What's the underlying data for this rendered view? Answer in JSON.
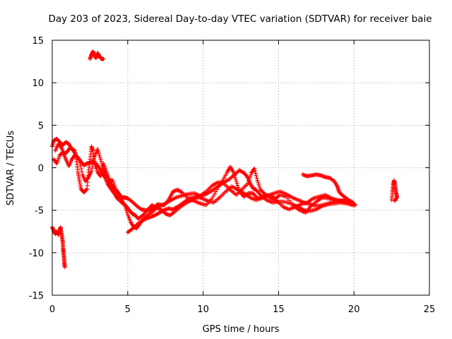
{
  "chart_data": {
    "type": "scatter",
    "title": "Day 203 of 2023, Sidereal Day-to-day VTEC variation (SDTVAR) for receiver baie",
    "xlabel": "GPS time / hours",
    "ylabel": "SDTVAR / TECUs",
    "xlim": [
      0,
      25
    ],
    "ylim": [
      -15,
      15
    ],
    "xticks": [
      "0",
      "5",
      "10",
      "15",
      "20",
      "25"
    ],
    "yticks": [
      "15",
      "10",
      "5",
      "0",
      "-5",
      "-10",
      "-15"
    ],
    "grid": true,
    "marker": "+",
    "series": [
      {
        "name": "trace-1",
        "color": "#ff0000",
        "points": [
          [
            0.0,
            2.5
          ],
          [
            0.1,
            3.2
          ],
          [
            0.3,
            3.4
          ],
          [
            0.5,
            3.0
          ],
          [
            0.7,
            2.7
          ],
          [
            0.9,
            3.0
          ],
          [
            1.1,
            2.8
          ],
          [
            1.3,
            2.2
          ],
          [
            1.5,
            2.0
          ],
          [
            1.6,
            1.0
          ],
          [
            1.7,
            -0.5
          ],
          [
            1.8,
            -1.5
          ],
          [
            1.9,
            -2.5
          ],
          [
            2.1,
            -2.9
          ],
          [
            2.3,
            -2.5
          ],
          [
            2.4,
            -0.5
          ],
          [
            2.5,
            1.0
          ],
          [
            2.6,
            2.5
          ],
          [
            2.7,
            2.0
          ],
          [
            2.8,
            0.5
          ],
          [
            3.0,
            -0.5
          ],
          [
            3.2,
            -1.0
          ],
          [
            3.4,
            0.5
          ],
          [
            3.6,
            -0.5
          ],
          [
            3.8,
            -1.5
          ],
          [
            4.0,
            -1.5
          ],
          [
            4.2,
            -2.5
          ],
          [
            4.4,
            -3.0
          ],
          [
            4.6,
            -3.5
          ],
          [
            4.8,
            -3.5
          ],
          [
            5.0,
            -3.6
          ],
          [
            5.3,
            -4.0
          ],
          [
            5.6,
            -4.5
          ],
          [
            5.9,
            -4.9
          ],
          [
            6.2,
            -5.0
          ],
          [
            6.5,
            -5.0
          ],
          [
            6.8,
            -4.6
          ],
          [
            7.0,
            -4.3
          ],
          [
            7.3,
            -4.4
          ],
          [
            7.5,
            -4.3
          ],
          [
            7.8,
            -3.5
          ],
          [
            8.0,
            -2.8
          ],
          [
            8.3,
            -2.6
          ],
          [
            8.6,
            -2.9
          ],
          [
            9.0,
            -3.6
          ],
          [
            9.4,
            -3.9
          ],
          [
            9.8,
            -4.2
          ],
          [
            10.2,
            -4.4
          ],
          [
            10.6,
            -3.6
          ],
          [
            11.0,
            -2.3
          ],
          [
            11.3,
            -1.5
          ],
          [
            11.6,
            -0.5
          ],
          [
            11.8,
            0.1
          ],
          [
            12.0,
            -0.5
          ],
          [
            12.2,
            -1.6
          ],
          [
            12.4,
            -2.8
          ],
          [
            12.7,
            -3.4
          ],
          [
            13.0,
            -3.0
          ],
          [
            13.3,
            -3.0
          ],
          [
            13.6,
            -3.6
          ],
          [
            14.0,
            -3.4
          ],
          [
            14.4,
            -3.2
          ],
          [
            14.8,
            -3.6
          ],
          [
            15.1,
            -3.2
          ],
          [
            15.5,
            -3.4
          ],
          [
            16.0,
            -4.5
          ],
          [
            16.4,
            -5.0
          ],
          [
            16.8,
            -5.3
          ],
          [
            17.1,
            -4.6
          ],
          [
            17.5,
            -4.0
          ],
          [
            17.9,
            -3.5
          ],
          [
            18.3,
            -3.6
          ],
          [
            18.7,
            -3.8
          ],
          [
            19.1,
            -4.0
          ],
          [
            19.5,
            -4.1
          ],
          [
            20.0,
            -4.2
          ]
        ]
      },
      {
        "name": "trace-2",
        "color": "#ff0000",
        "points": [
          [
            0.1,
            1.0
          ],
          [
            0.3,
            0.5
          ],
          [
            0.5,
            1.5
          ],
          [
            0.7,
            1.8
          ],
          [
            0.9,
            1.0
          ],
          [
            1.1,
            0.2
          ],
          [
            1.3,
            1.0
          ],
          [
            1.5,
            1.5
          ],
          [
            1.7,
            1.2
          ],
          [
            1.9,
            0.7
          ],
          [
            2.1,
            0.3
          ],
          [
            2.3,
            0.5
          ],
          [
            2.5,
            0.6
          ],
          [
            2.7,
            0.7
          ],
          [
            2.9,
            0.5
          ],
          [
            3.1,
            0.0
          ],
          [
            3.3,
            -0.6
          ],
          [
            3.5,
            -1.2
          ],
          [
            3.7,
            -2.0
          ],
          [
            3.9,
            -2.5
          ],
          [
            4.1,
            -3.0
          ],
          [
            4.3,
            -3.6
          ],
          [
            4.6,
            -4.1
          ],
          [
            4.9,
            -4.5
          ],
          [
            5.1,
            -5.0
          ],
          [
            5.3,
            -5.4
          ],
          [
            5.5,
            -5.6
          ],
          [
            5.7,
            -6.0
          ],
          [
            6.0,
            -5.6
          ],
          [
            6.3,
            -5.0
          ],
          [
            6.6,
            -4.4
          ],
          [
            6.9,
            -4.7
          ],
          [
            7.2,
            -4.9
          ],
          [
            7.5,
            -5.4
          ],
          [
            7.8,
            -5.6
          ],
          [
            8.1,
            -5.2
          ],
          [
            8.5,
            -4.6
          ],
          [
            8.9,
            -4.1
          ],
          [
            9.3,
            -3.8
          ],
          [
            9.7,
            -3.4
          ],
          [
            10.1,
            -3.2
          ],
          [
            10.5,
            -2.8
          ],
          [
            10.9,
            -2.3
          ],
          [
            11.3,
            -1.8
          ],
          [
            11.7,
            -1.4
          ],
          [
            12.1,
            -0.8
          ],
          [
            12.4,
            -0.3
          ],
          [
            12.7,
            -0.6
          ],
          [
            12.9,
            -1.0
          ],
          [
            13.1,
            -1.8
          ],
          [
            13.3,
            -2.4
          ],
          [
            13.5,
            -2.6
          ],
          [
            13.8,
            -3.2
          ],
          [
            14.2,
            -3.8
          ],
          [
            14.6,
            -4.1
          ],
          [
            15.0,
            -4.0
          ],
          [
            15.4,
            -4.0
          ],
          [
            15.9,
            -4.3
          ],
          [
            16.3,
            -4.6
          ],
          [
            16.7,
            -5.0
          ],
          [
            17.1,
            -5.1
          ],
          [
            17.5,
            -4.9
          ],
          [
            17.9,
            -4.5
          ],
          [
            18.3,
            -4.3
          ],
          [
            18.7,
            -4.2
          ],
          [
            19.1,
            -4.1
          ],
          [
            19.5,
            -4.2
          ],
          [
            19.9,
            -4.4
          ]
        ]
      },
      {
        "name": "trace-3",
        "color": "#ff0000",
        "points": [
          [
            0.2,
            2.0
          ],
          [
            0.4,
            2.8
          ],
          [
            0.6,
            2.4
          ],
          [
            0.8,
            1.6
          ],
          [
            1.0,
            1.9
          ],
          [
            1.2,
            2.4
          ],
          [
            1.4,
            2.0
          ],
          [
            1.6,
            1.4
          ],
          [
            1.8,
            0.9
          ],
          [
            2.0,
            -0.8
          ],
          [
            2.2,
            -1.6
          ],
          [
            2.4,
            -1.1
          ],
          [
            2.6,
            -0.4
          ],
          [
            2.8,
            1.3
          ],
          [
            3.0,
            2.2
          ],
          [
            3.2,
            1.0
          ],
          [
            3.4,
            -0.2
          ],
          [
            3.6,
            -0.9
          ],
          [
            3.8,
            -1.7
          ],
          [
            4.0,
            -2.2
          ],
          [
            4.2,
            -2.8
          ],
          [
            4.4,
            -3.3
          ],
          [
            4.6,
            -3.8
          ],
          [
            4.8,
            -4.4
          ],
          [
            5.0,
            -5.5
          ],
          [
            5.2,
            -6.4
          ],
          [
            5.4,
            -7.0
          ],
          [
            5.6,
            -7.1
          ],
          [
            5.8,
            -6.6
          ],
          [
            6.0,
            -6.1
          ],
          [
            6.3,
            -5.6
          ],
          [
            6.7,
            -5.1
          ],
          [
            7.0,
            -4.6
          ],
          [
            7.4,
            -4.3
          ],
          [
            7.8,
            -3.9
          ],
          [
            8.2,
            -3.5
          ],
          [
            8.6,
            -3.3
          ],
          [
            9.0,
            -3.1
          ],
          [
            9.4,
            -3.0
          ],
          [
            9.8,
            -3.3
          ],
          [
            10.2,
            -2.8
          ],
          [
            10.6,
            -2.1
          ],
          [
            11.0,
            -1.7
          ],
          [
            11.4,
            -1.9
          ],
          [
            11.8,
            -2.6
          ],
          [
            12.2,
            -3.2
          ],
          [
            12.6,
            -2.5
          ],
          [
            13.0,
            -1.8
          ],
          [
            13.2,
            -0.6
          ],
          [
            13.4,
            -0.1
          ],
          [
            13.6,
            -1.5
          ],
          [
            13.8,
            -2.6
          ],
          [
            14.1,
            -3.1
          ],
          [
            14.5,
            -3.6
          ],
          [
            14.9,
            -3.9
          ],
          [
            15.3,
            -4.6
          ],
          [
            15.7,
            -4.9
          ],
          [
            16.1,
            -4.6
          ],
          [
            16.5,
            -4.3
          ],
          [
            16.9,
            -4.1
          ],
          [
            17.3,
            -3.6
          ],
          [
            17.7,
            -3.4
          ],
          [
            18.1,
            -3.2
          ],
          [
            18.5,
            -3.6
          ],
          [
            18.9,
            -3.8
          ],
          [
            19.3,
            -3.9
          ],
          [
            19.7,
            -4.0
          ],
          [
            20.0,
            -4.4
          ]
        ]
      },
      {
        "name": "trace-4",
        "color": "#ff0000",
        "points": [
          [
            5.0,
            -7.6
          ],
          [
            5.3,
            -7.2
          ],
          [
            5.6,
            -6.7
          ],
          [
            5.9,
            -6.3
          ],
          [
            6.2,
            -6.0
          ],
          [
            6.5,
            -5.8
          ],
          [
            6.8,
            -5.6
          ],
          [
            7.1,
            -5.3
          ],
          [
            7.4,
            -5.0
          ],
          [
            7.7,
            -4.8
          ],
          [
            8.0,
            -4.9
          ],
          [
            8.3,
            -4.6
          ],
          [
            8.7,
            -4.1
          ],
          [
            9.1,
            -3.6
          ],
          [
            9.5,
            -3.4
          ],
          [
            9.9,
            -3.6
          ],
          [
            10.3,
            -3.9
          ],
          [
            10.7,
            -4.1
          ],
          [
            11.1,
            -3.5
          ],
          [
            11.5,
            -2.8
          ],
          [
            11.9,
            -2.2
          ],
          [
            12.3,
            -2.6
          ],
          [
            12.7,
            -3.0
          ],
          [
            13.1,
            -3.5
          ],
          [
            13.5,
            -3.8
          ],
          [
            13.9,
            -3.6
          ],
          [
            14.3,
            -3.3
          ],
          [
            14.7,
            -3.0
          ],
          [
            15.1,
            -2.8
          ],
          [
            15.5,
            -3.1
          ],
          [
            15.9,
            -3.5
          ],
          [
            16.3,
            -3.8
          ],
          [
            16.7,
            -4.1
          ],
          [
            17.1,
            -4.3
          ],
          [
            17.5,
            -4.5
          ],
          [
            17.9,
            -4.4
          ],
          [
            18.3,
            -4.2
          ],
          [
            18.7,
            -4.0
          ],
          [
            19.1,
            -3.9
          ],
          [
            19.5,
            -3.8
          ],
          [
            19.9,
            -4.0
          ]
        ]
      },
      {
        "name": "trace-5",
        "color": "#ff0000",
        "points": [
          [
            16.6,
            -0.8
          ],
          [
            16.9,
            -1.0
          ],
          [
            17.2,
            -0.9
          ],
          [
            17.5,
            -0.8
          ],
          [
            17.8,
            -0.9
          ],
          [
            18.1,
            -1.1
          ],
          [
            18.4,
            -1.2
          ],
          [
            18.7,
            -1.6
          ],
          [
            18.9,
            -2.2
          ],
          [
            19.0,
            -2.8
          ],
          [
            19.2,
            -3.2
          ],
          [
            19.5,
            -3.6
          ],
          [
            19.8,
            -4.0
          ],
          [
            20.1,
            -4.4
          ]
        ]
      },
      {
        "name": "segment-early-negative",
        "color": "#ff0000",
        "points": [
          [
            0.0,
            -7.0
          ],
          [
            0.1,
            -7.4
          ],
          [
            0.2,
            -7.8
          ],
          [
            0.3,
            -7.5
          ],
          [
            0.4,
            -7.9
          ],
          [
            0.5,
            -7.3
          ],
          [
            0.55,
            -7.0
          ],
          [
            0.6,
            -7.6
          ],
          [
            0.65,
            -8.2
          ],
          [
            0.7,
            -8.8
          ],
          [
            0.72,
            -9.5
          ],
          [
            0.75,
            -10.0
          ],
          [
            0.78,
            -10.6
          ],
          [
            0.8,
            -11.2
          ],
          [
            0.83,
            -11.7
          ]
        ]
      },
      {
        "name": "segment-early-high",
        "color": "#ff0000",
        "points": [
          [
            2.5,
            12.8
          ],
          [
            2.6,
            13.3
          ],
          [
            2.7,
            13.7
          ],
          [
            2.8,
            13.2
          ],
          [
            2.9,
            12.9
          ],
          [
            3.0,
            13.5
          ],
          [
            3.1,
            13.2
          ],
          [
            3.2,
            12.9
          ],
          [
            3.3,
            12.8
          ],
          [
            3.4,
            12.8
          ]
        ]
      },
      {
        "name": "segment-late",
        "color": "#ff0000",
        "points": [
          [
            22.5,
            -3.8
          ],
          [
            22.55,
            -2.8
          ],
          [
            22.6,
            -2.0
          ],
          [
            22.65,
            -1.5
          ],
          [
            22.7,
            -1.8
          ],
          [
            22.75,
            -2.4
          ],
          [
            22.8,
            -3.0
          ],
          [
            22.85,
            -3.5
          ],
          [
            22.7,
            -3.9
          ]
        ]
      }
    ]
  }
}
